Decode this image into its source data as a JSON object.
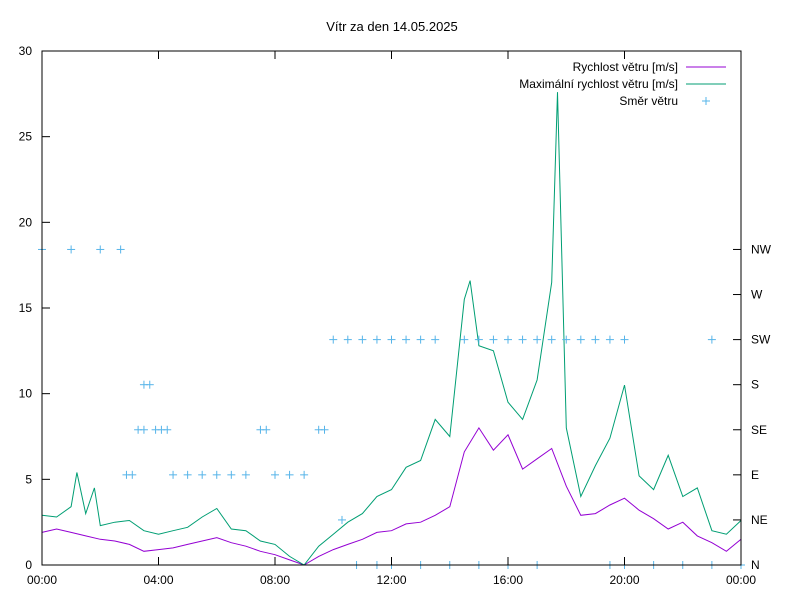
{
  "chart_data": {
    "type": "line",
    "title": "Vítr za den 14.05.2025",
    "xlabel": "",
    "ylabel": "",
    "xlim": [
      0,
      24
    ],
    "ylim": [
      0,
      30
    ],
    "x_ticks": [
      "00:00",
      "04:00",
      "08:00",
      "12:00",
      "16:00",
      "20:00",
      "00:00"
    ],
    "y_ticks": [
      "0",
      "5",
      "10",
      "15",
      "20",
      "25",
      "30"
    ],
    "y2_ticks": [
      "N",
      "NE",
      "E",
      "SE",
      "S",
      "SW",
      "W",
      "NW"
    ],
    "legend_position": "top-right",
    "grid": false,
    "series": [
      {
        "name": "Rychlost větru [m/s]",
        "color": "#9400d3",
        "points": [
          [
            0,
            1.9
          ],
          [
            0.5,
            2.1
          ],
          [
            1,
            1.9
          ],
          [
            1.5,
            1.7
          ],
          [
            2,
            1.5
          ],
          [
            2.5,
            1.4
          ],
          [
            3,
            1.2
          ],
          [
            3.5,
            0.8
          ],
          [
            4,
            0.9
          ],
          [
            4.5,
            1.0
          ],
          [
            5,
            1.2
          ],
          [
            5.5,
            1.4
          ],
          [
            6,
            1.6
          ],
          [
            6.5,
            1.3
          ],
          [
            7,
            1.1
          ],
          [
            7.5,
            0.8
          ],
          [
            8,
            0.6
          ],
          [
            8.5,
            0.3
          ],
          [
            9,
            0.0
          ],
          [
            9.5,
            0.5
          ],
          [
            10,
            0.9
          ],
          [
            10.5,
            1.2
          ],
          [
            11,
            1.5
          ],
          [
            11.5,
            1.9
          ],
          [
            12,
            2.0
          ],
          [
            12.5,
            2.4
          ],
          [
            13,
            2.5
          ],
          [
            13.5,
            2.9
          ],
          [
            14,
            3.4
          ],
          [
            14.5,
            6.6
          ],
          [
            15,
            8.0
          ],
          [
            15.5,
            6.7
          ],
          [
            16,
            7.6
          ],
          [
            16.5,
            5.6
          ],
          [
            17,
            6.2
          ],
          [
            17.5,
            6.8
          ],
          [
            18,
            4.6
          ],
          [
            18.5,
            2.9
          ],
          [
            19,
            3.0
          ],
          [
            19.5,
            3.5
          ],
          [
            20,
            3.9
          ],
          [
            20.5,
            3.2
          ],
          [
            21,
            2.7
          ],
          [
            21.5,
            2.1
          ],
          [
            22,
            2.5
          ],
          [
            22.5,
            1.7
          ],
          [
            23,
            1.3
          ],
          [
            23.5,
            0.8
          ],
          [
            24,
            1.5
          ]
        ]
      },
      {
        "name": "Maximální rychlost větru [m/s]",
        "color": "#009e73",
        "points": [
          [
            0,
            2.9
          ],
          [
            0.5,
            2.8
          ],
          [
            1,
            3.4
          ],
          [
            1.2,
            5.4
          ],
          [
            1.5,
            3.0
          ],
          [
            1.8,
            4.5
          ],
          [
            2,
            2.3
          ],
          [
            2.5,
            2.5
          ],
          [
            3,
            2.6
          ],
          [
            3.5,
            2.0
          ],
          [
            4,
            1.8
          ],
          [
            4.5,
            2.0
          ],
          [
            5,
            2.2
          ],
          [
            5.5,
            2.8
          ],
          [
            6,
            3.3
          ],
          [
            6.5,
            2.1
          ],
          [
            7,
            2.0
          ],
          [
            7.5,
            1.4
          ],
          [
            8,
            1.2
          ],
          [
            8.5,
            0.5
          ],
          [
            9,
            0.0
          ],
          [
            9.5,
            1.1
          ],
          [
            10,
            1.8
          ],
          [
            10.5,
            2.5
          ],
          [
            11,
            3.0
          ],
          [
            11.5,
            4.0
          ],
          [
            12,
            4.4
          ],
          [
            12.5,
            5.7
          ],
          [
            13,
            6.1
          ],
          [
            13.5,
            8.5
          ],
          [
            14,
            7.5
          ],
          [
            14.5,
            15.5
          ],
          [
            14.7,
            16.6
          ],
          [
            15,
            12.8
          ],
          [
            15.5,
            12.5
          ],
          [
            16,
            9.5
          ],
          [
            16.5,
            8.5
          ],
          [
            17,
            10.8
          ],
          [
            17.5,
            16.5
          ],
          [
            17.7,
            27.6
          ],
          [
            18,
            8.0
          ],
          [
            18.5,
            4.0
          ],
          [
            19,
            5.8
          ],
          [
            19.5,
            7.4
          ],
          [
            20,
            10.5
          ],
          [
            20.5,
            5.2
          ],
          [
            21,
            4.4
          ],
          [
            21.5,
            6.4
          ],
          [
            22,
            4.0
          ],
          [
            22.5,
            4.5
          ],
          [
            23,
            2.0
          ],
          [
            23.5,
            1.8
          ],
          [
            24,
            2.6
          ]
        ]
      },
      {
        "name": "Směr větru",
        "color": "#56b4e9",
        "y_axis": "right",
        "direction_order": [
          "N",
          "NE",
          "E",
          "SE",
          "S",
          "SW",
          "W",
          "NW"
        ],
        "points": [
          [
            0,
            "NW"
          ],
          [
            1,
            "NW"
          ],
          [
            2,
            "NW"
          ],
          [
            2.7,
            "NW"
          ],
          [
            2.9,
            "E"
          ],
          [
            3.1,
            "E"
          ],
          [
            3.3,
            "SE"
          ],
          [
            3.5,
            "SE"
          ],
          [
            3.5,
            "S"
          ],
          [
            3.7,
            "S"
          ],
          [
            3.9,
            "SE"
          ],
          [
            4.1,
            "SE"
          ],
          [
            4.3,
            "SE"
          ],
          [
            4.5,
            "E"
          ],
          [
            5,
            "E"
          ],
          [
            5.5,
            "E"
          ],
          [
            6,
            "E"
          ],
          [
            6.5,
            "E"
          ],
          [
            7,
            "E"
          ],
          [
            7.5,
            "SE"
          ],
          [
            7.7,
            "SE"
          ],
          [
            8,
            "E"
          ],
          [
            8.5,
            "E"
          ],
          [
            9,
            "E"
          ],
          [
            9.5,
            "SE"
          ],
          [
            9.7,
            "SE"
          ],
          [
            10,
            "SW"
          ],
          [
            10.3,
            "NE"
          ],
          [
            10.5,
            "SW"
          ],
          [
            11,
            "SW"
          ],
          [
            11.5,
            "SW"
          ],
          [
            12,
            "SW"
          ],
          [
            12.5,
            "SW"
          ],
          [
            13,
            "SW"
          ],
          [
            13.5,
            "SW"
          ],
          [
            14.5,
            "SW"
          ],
          [
            15,
            "SW"
          ],
          [
            15.5,
            "SW"
          ],
          [
            16,
            "SW"
          ],
          [
            16.5,
            "SW"
          ],
          [
            17,
            "SW"
          ],
          [
            17.5,
            "SW"
          ],
          [
            18,
            "SW"
          ],
          [
            18.5,
            "SW"
          ],
          [
            19,
            "SW"
          ],
          [
            19.5,
            "SW"
          ],
          [
            20,
            "SW"
          ],
          [
            23,
            "SW"
          ],
          [
            10.8,
            "N"
          ],
          [
            11.5,
            "N"
          ],
          [
            12,
            "N"
          ],
          [
            13,
            "N"
          ],
          [
            14,
            "N"
          ],
          [
            15,
            "N"
          ],
          [
            16,
            "N"
          ],
          [
            17,
            "N"
          ],
          [
            19.5,
            "N"
          ],
          [
            20,
            "N"
          ],
          [
            21,
            "N"
          ],
          [
            22,
            "N"
          ],
          [
            23,
            "N"
          ],
          [
            24,
            "N"
          ]
        ]
      }
    ]
  }
}
